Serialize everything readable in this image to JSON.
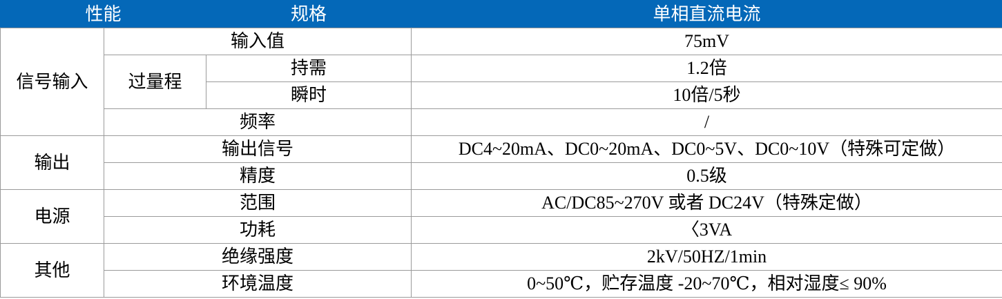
{
  "header": {
    "col1": "性能",
    "col2": "规格",
    "col3": "单相直流电流"
  },
  "colors": {
    "header_bg": "#0468B8",
    "header_text": "#FFFFFF",
    "grid": "#9A9A9A"
  },
  "groups": {
    "signal_input": "信号输入",
    "overrange": "过量程",
    "output": "输出",
    "power": "电源",
    "other": "其他"
  },
  "rows": [
    {
      "spec": "输入值",
      "value": "75mV"
    },
    {
      "spec": "持需",
      "value": "1.2倍"
    },
    {
      "spec": "瞬时",
      "value": "10倍/5秒"
    },
    {
      "spec": "频率",
      "value": "/"
    },
    {
      "spec": "输出信号",
      "value": "DC4~20mA、DC0~20mA、DC0~5V、DC0~10V（特殊可定做）"
    },
    {
      "spec": "精度",
      "value": "0.5级"
    },
    {
      "spec": "范围",
      "value": "AC/DC85~270V 或者 DC24V（特殊定做）"
    },
    {
      "spec": "功耗",
      "value": "〈3VA"
    },
    {
      "spec": "绝缘强度",
      "value": "2kV/50HZ/1min"
    },
    {
      "spec": "环境温度",
      "value": "0~50℃，贮存温度 -20~70℃，相对湿度≤ 90%"
    }
  ]
}
